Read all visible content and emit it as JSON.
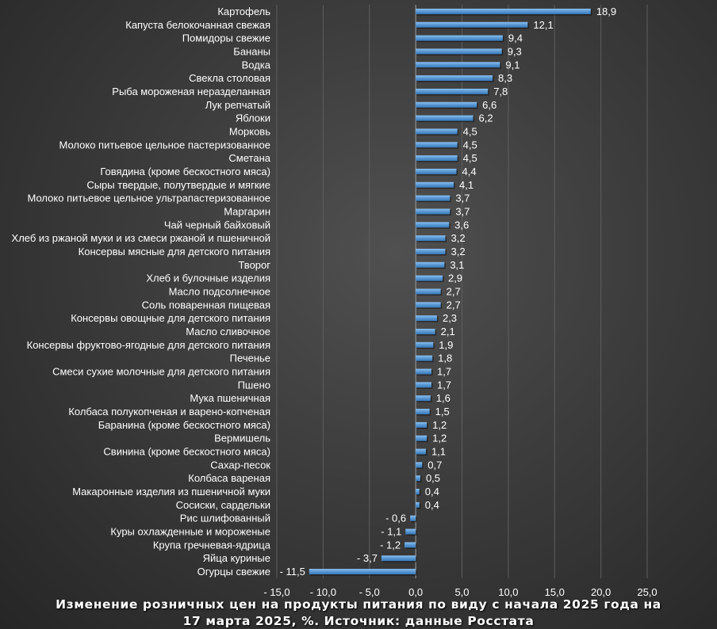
{
  "chart_data": {
    "type": "bar",
    "orientation": "horizontal",
    "title_line1": "Изменение розничных цен на продукты питания по виду с начала 2025 года на",
    "title_line2": "17 марта 2025, %. Источник: данные Росстата",
    "xlim": [
      -15,
      25
    ],
    "xticks": [
      "- 15,0",
      "- 10,0",
      "- 5,0",
      "0,0",
      "5,0",
      "10,0",
      "15,0",
      "20,0",
      "25,0"
    ],
    "xtick_values": [
      -15,
      -10,
      -5,
      0,
      5,
      10,
      15,
      20,
      25
    ],
    "grid": true,
    "bar_color": "#5b9bd5",
    "categories": [
      "Картофель",
      "Капуста белокочанная свежая",
      "Помидоры свежие",
      "Бананы",
      "Водка",
      "Свекла столовая",
      "Рыба мороженая неразделанная",
      "Лук репчатый",
      "Яблоки",
      "Морковь",
      "Молоко питьевое цельное  пастеризованное",
      "Сметана",
      "Говядина (кроме бескостного мяса)",
      "Сыры твердые, полутвердые и мягкие",
      "Молоко питьевое цельное  ультрапастеризованное",
      "Маргарин",
      "Чай черный байховый",
      "Хлеб из ржаной муки и из смеси ржаной и  пшеничной",
      "Консервы мясные для детского питания",
      "Творог",
      "Хлеб и булочные изделия",
      "Масло подсолнечное",
      "Соль поваренная пищевая",
      "Консервы овощные для детского питания",
      "Масло сливочное",
      "Консервы фруктово-ягодные для детского питания",
      "Печенье",
      "Смеси сухие молочные для детского питания",
      "Пшено",
      "Мука пшеничная",
      "Колбаса полукопченая и варено-копченая",
      "Баранина (кроме бескостного мяса)",
      "Вермишель",
      "Свинина (кроме бескостного мяса)",
      "Сахар-песок",
      "Колбаса вареная",
      "Макаронные изделия из  пшеничной муки",
      "Сосиски, сардельки",
      "Рис шлифованный",
      "Куры охлажденные и мороженые",
      "Крупа гречневая-ядрица",
      "Яйца куриные",
      "Огурцы свежие"
    ],
    "values": [
      18.9,
      12.1,
      9.4,
      9.3,
      9.1,
      8.3,
      7.8,
      6.6,
      6.2,
      4.5,
      4.5,
      4.5,
      4.4,
      4.1,
      3.7,
      3.7,
      3.6,
      3.2,
      3.2,
      3.1,
      2.9,
      2.7,
      2.7,
      2.3,
      2.1,
      1.9,
      1.8,
      1.7,
      1.7,
      1.6,
      1.5,
      1.2,
      1.2,
      1.1,
      0.7,
      0.5,
      0.4,
      0.4,
      -0.6,
      -1.1,
      -1.2,
      -3.7,
      -11.5
    ],
    "value_labels": [
      "18,9",
      "12,1",
      "9,4",
      "9,3",
      "9,1",
      "8,3",
      "7,8",
      "6,6",
      "6,2",
      "4,5",
      "4,5",
      "4,5",
      "4,4",
      "4,1",
      "3,7",
      "3,7",
      "3,6",
      "3,2",
      "3,2",
      "3,1",
      "2,9",
      "2,7",
      "2,7",
      "2,3",
      "2,1",
      "1,9",
      "1,8",
      "1,7",
      "1,7",
      "1,6",
      "1,5",
      "1,2",
      "1,2",
      "1,1",
      "0,7",
      "0,5",
      "0,4",
      "0,4",
      "- 0,6",
      "- 1,1",
      "- 1,2",
      "- 3,7",
      "- 11,5"
    ]
  }
}
